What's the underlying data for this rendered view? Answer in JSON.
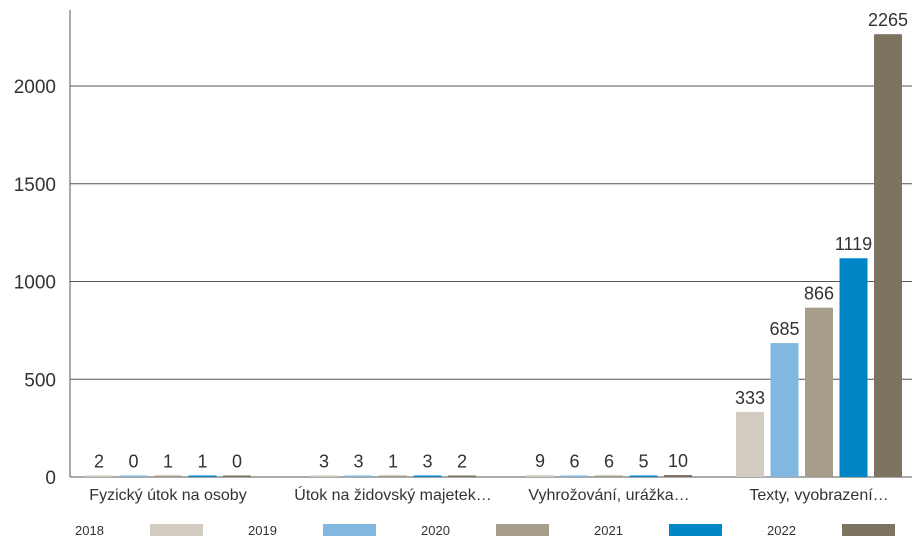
{
  "chart_data": {
    "type": "bar",
    "categories": [
      "Fyzický útok na osoby",
      "Útok na židovský majetek…",
      "Vyhrožování, urážka…",
      "Texty, vyobrazení…"
    ],
    "series": [
      {
        "name": "2018",
        "color": "#d2cbbf",
        "values": [
          2,
          3,
          9,
          333
        ]
      },
      {
        "name": "2019",
        "color": "#82b8e0",
        "values": [
          0,
          3,
          6,
          685
        ]
      },
      {
        "name": "2020",
        "color": "#a69d8b",
        "values": [
          1,
          1,
          6,
          866
        ]
      },
      {
        "name": "2021",
        "color": "#0086c6",
        "values": [
          1,
          3,
          5,
          1119
        ]
      },
      {
        "name": "2022",
        "color": "#7c7360",
        "values": [
          0,
          2,
          10,
          2265
        ]
      }
    ],
    "ylim": [
      0,
      2300
    ],
    "yticks": [
      "0",
      "500",
      "1000",
      "1500",
      "2000"
    ],
    "grid": true,
    "legend_position": "bottom",
    "title": "",
    "xlabel": "",
    "ylabel": ""
  }
}
